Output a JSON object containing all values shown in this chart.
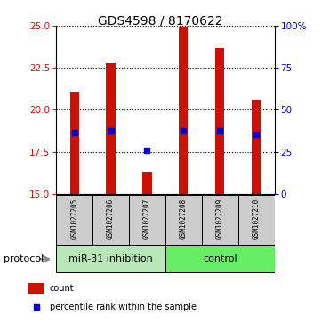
{
  "title": "GDS4598 / 8170622",
  "samples": [
    "GSM1027205",
    "GSM1027206",
    "GSM1027207",
    "GSM1027208",
    "GSM1027209",
    "GSM1027210"
  ],
  "bar_bottoms": [
    15,
    15,
    15,
    15,
    15,
    15
  ],
  "bar_tops": [
    21.1,
    22.8,
    16.3,
    24.95,
    23.7,
    20.6
  ],
  "percentile_values": [
    18.65,
    18.75,
    17.6,
    18.75,
    18.75,
    18.55
  ],
  "ylim": [
    15,
    25
  ],
  "yticks_left": [
    15,
    17.5,
    20,
    22.5,
    25
  ],
  "yticks_right_vals": [
    0,
    25,
    50,
    75,
    100
  ],
  "bar_color": "#cc1100",
  "percentile_color": "#0000cc",
  "group1_indices": [
    0,
    1,
    2
  ],
  "group2_indices": [
    3,
    4,
    5
  ],
  "group1_label": "miR-31 inhibition",
  "group2_label": "control",
  "protocol_label": "protocol",
  "group1_color": "#b8e8b8",
  "group2_color": "#66ee66",
  "bar_width": 0.25,
  "background_color": "#ffffff",
  "label_area_color": "#cccccc",
  "legend_count_label": "count",
  "legend_pct_label": "percentile rank within the sample",
  "title_fontsize": 10,
  "tick_fontsize": 7.5,
  "sample_fontsize": 5.5,
  "group_fontsize": 8,
  "legend_fontsize": 7
}
